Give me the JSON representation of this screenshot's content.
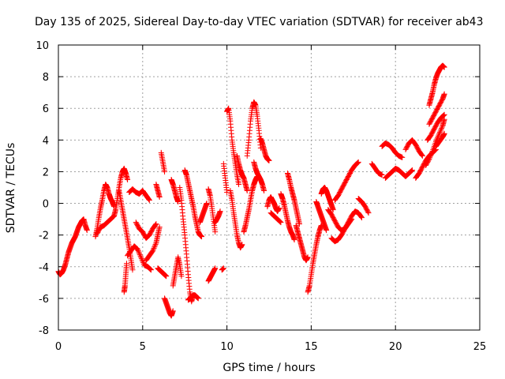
{
  "chart_data": {
    "type": "scatter",
    "title": "Day 135 of 2025, Sidereal Day-to-day VTEC variation (SDTVAR) for receiver ab43",
    "xlabel": "GPS time / hours",
    "ylabel": "SDTVAR / TECUs",
    "xlim": [
      0,
      25
    ],
    "ylim": [
      -8,
      10
    ],
    "xticks": [
      0,
      5,
      10,
      15,
      20,
      25
    ],
    "yticks": [
      -8,
      -6,
      -4,
      -2,
      0,
      2,
      4,
      6,
      8,
      10
    ],
    "xtick_labels": [
      "0",
      "5",
      "10",
      "15",
      "20",
      "25"
    ],
    "ytick_labels": [
      "-8",
      "-6",
      "-4",
      "-2",
      "0",
      "2",
      "4",
      "6",
      "8",
      "10"
    ],
    "grid": true,
    "marker": "+",
    "color": "#ff0000",
    "series": [
      {
        "x": [
          0.0,
          0.1,
          0.2,
          0.3,
          0.4,
          0.5,
          0.6,
          0.7,
          0.8,
          0.9,
          1.0,
          1.1,
          1.2,
          1.3,
          1.4,
          1.5,
          1.6,
          1.7
        ],
        "y": [
          -4.3,
          -4.5,
          -4.4,
          -4.2,
          -3.9,
          -3.5,
          -3.1,
          -2.8,
          -2.5,
          -2.3,
          -2.1,
          -1.8,
          -1.5,
          -1.3,
          -1.1,
          -1.0,
          -1.4,
          -1.7
        ]
      },
      {
        "x": [
          2.2,
          2.3,
          2.4,
          2.5,
          2.6,
          2.7,
          2.8,
          2.9,
          3.0,
          3.1,
          3.2,
          3.3
        ],
        "y": [
          -2.1,
          -1.6,
          -0.9,
          -0.3,
          0.2,
          0.8,
          1.2,
          1.0,
          0.6,
          0.3,
          0.1,
          -0.2
        ]
      },
      {
        "x": [
          2.3,
          2.5,
          2.7,
          2.9,
          3.1,
          3.3
        ],
        "y": [
          -1.9,
          -1.5,
          -1.4,
          -1.2,
          -1.0,
          -0.8
        ]
      },
      {
        "x": [
          3.3,
          3.4,
          3.5,
          3.6,
          3.7,
          3.8,
          3.9,
          4.0,
          4.1
        ],
        "y": [
          -0.8,
          -0.4,
          0.3,
          1.0,
          1.6,
          2.0,
          2.2,
          1.9,
          1.5
        ]
      },
      {
        "x": [
          3.6,
          3.7,
          3.8,
          3.9,
          4.0,
          4.1,
          4.2,
          4.3,
          4.4
        ],
        "y": [
          0.8,
          0.2,
          -0.4,
          -1.0,
          -1.6,
          -2.2,
          -2.8,
          -3.5,
          -4.2
        ]
      },
      {
        "x": [
          3.9,
          3.95,
          4.0,
          4.05
        ],
        "y": [
          -5.6,
          -5.2,
          -4.5,
          -3.8
        ]
      },
      {
        "x": [
          4.1,
          4.3,
          4.5,
          4.7,
          4.9,
          5.1,
          5.3,
          5.5
        ],
        "y": [
          -3.3,
          -3.0,
          -2.7,
          -2.9,
          -3.4,
          -3.9,
          -4.0,
          -4.2
        ]
      },
      {
        "x": [
          4.2,
          4.4,
          4.6,
          4.8,
          5.0,
          5.2,
          5.4
        ],
        "y": [
          0.7,
          0.9,
          0.7,
          0.6,
          0.8,
          0.5,
          0.2
        ]
      },
      {
        "x": [
          4.6,
          4.8,
          5.0,
          5.2,
          5.4,
          5.6,
          5.8
        ],
        "y": [
          -1.2,
          -1.6,
          -1.8,
          -2.2,
          -2.0,
          -1.6,
          -1.3
        ]
      },
      {
        "x": [
          5.2,
          5.4,
          5.6,
          5.8,
          5.9,
          6.0
        ],
        "y": [
          -3.6,
          -3.3,
          -3.0,
          -2.5,
          -2.0,
          -1.5
        ]
      },
      {
        "x": [
          5.8,
          5.9,
          6.0
        ],
        "y": [
          1.2,
          0.8,
          0.4
        ]
      },
      {
        "x": [
          5.9,
          6.0,
          6.1,
          6.2,
          6.3,
          6.4
        ],
        "y": [
          -4.1,
          -4.2,
          -4.3,
          -4.4,
          -4.5,
          -4.6
        ]
      },
      {
        "x": [
          6.1,
          6.2,
          6.3
        ],
        "y": [
          3.2,
          2.6,
          2.0
        ]
      },
      {
        "x": [
          6.3,
          6.4,
          6.5,
          6.6,
          6.7,
          6.8
        ],
        "y": [
          -6.0,
          -6.3,
          -6.6,
          -6.9,
          -7.1,
          -6.8
        ]
      },
      {
        "x": [
          6.8,
          6.9,
          7.0,
          7.1,
          7.2,
          7.3
        ],
        "y": [
          -5.2,
          -4.6,
          -4.0,
          -3.4,
          -3.9,
          -4.6
        ]
      },
      {
        "x": [
          6.7,
          6.8,
          6.9,
          7.0,
          7.1
        ],
        "y": [
          1.5,
          1.2,
          0.8,
          0.4,
          0.1
        ]
      },
      {
        "x": [
          7.2,
          7.3,
          7.4,
          7.5,
          7.6,
          7.7,
          7.8,
          7.9,
          8.0
        ],
        "y": [
          1.0,
          0.2,
          -1.0,
          -2.0,
          -3.2,
          -4.5,
          -5.6,
          -6.2,
          -5.8
        ]
      },
      {
        "x": [
          7.5,
          7.6,
          7.7,
          7.8,
          7.9,
          8.0,
          8.1,
          8.2,
          8.3,
          8.4,
          8.5
        ],
        "y": [
          2.1,
          1.8,
          1.3,
          0.8,
          0.3,
          -0.2,
          -0.8,
          -1.3,
          -1.8,
          -2.0,
          -2.1
        ]
      },
      {
        "x": [
          7.7,
          7.8,
          7.9,
          8.0,
          8.1,
          8.2,
          8.3
        ],
        "y": [
          -6.1,
          -6.0,
          -5.9,
          -5.8,
          -5.8,
          -5.9,
          -6.0
        ]
      },
      {
        "x": [
          8.4,
          8.5,
          8.6,
          8.7,
          8.8
        ],
        "y": [
          -1.2,
          -0.9,
          -0.6,
          -0.3,
          0.0
        ]
      },
      {
        "x": [
          8.9,
          9.0,
          9.1,
          9.2,
          9.3
        ],
        "y": [
          0.9,
          0.5,
          -0.2,
          -1.0,
          -1.8
        ]
      },
      {
        "x": [
          8.9,
          9.0,
          9.1,
          9.2,
          9.3
        ],
        "y": [
          -4.9,
          -4.7,
          -4.5,
          -4.3,
          -4.1
        ]
      },
      {
        "x": [
          9.3,
          9.4,
          9.5,
          9.6
        ],
        "y": [
          -1.2,
          -1.0,
          -0.8,
          -0.5
        ]
      },
      {
        "x": [
          9.7,
          9.8
        ],
        "y": [
          -4.2,
          -4.1
        ]
      },
      {
        "x": [
          9.8,
          9.9,
          10.0
        ],
        "y": [
          2.5,
          1.6,
          0.7
        ]
      },
      {
        "x": [
          10.0,
          10.1,
          10.2,
          10.3,
          10.4,
          10.5,
          10.6,
          10.7
        ],
        "y": [
          5.8,
          6.0,
          5.2,
          4.0,
          3.2,
          2.5,
          1.8,
          1.2
        ]
      },
      {
        "x": [
          10.2,
          10.3,
          10.4,
          10.5,
          10.6,
          10.7,
          10.8,
          10.9
        ],
        "y": [
          0.8,
          0.2,
          -0.6,
          -1.3,
          -2.0,
          -2.5,
          -2.8,
          -2.6
        ]
      },
      {
        "x": [
          10.6,
          10.7,
          10.8,
          10.9,
          11.0,
          11.1,
          11.2
        ],
        "y": [
          3.0,
          2.5,
          2.1,
          1.8,
          1.6,
          1.2,
          0.8
        ]
      },
      {
        "x": [
          11.0,
          11.1,
          11.2,
          11.3,
          11.4,
          11.5,
          11.6,
          11.7,
          11.8
        ],
        "y": [
          -1.8,
          -1.4,
          -0.9,
          -0.4,
          0.2,
          0.8,
          1.2,
          1.5,
          1.7
        ]
      },
      {
        "x": [
          11.2,
          11.3,
          11.4,
          11.5,
          11.6,
          11.7,
          11.8,
          11.9,
          12.0
        ],
        "y": [
          3.0,
          4.0,
          5.2,
          6.0,
          6.4,
          6.2,
          5.5,
          4.6,
          3.5
        ]
      },
      {
        "x": [
          11.6,
          11.7,
          11.8,
          11.9,
          12.0,
          12.1,
          12.2
        ],
        "y": [
          2.6,
          2.2,
          1.9,
          1.7,
          1.5,
          1.2,
          0.8
        ]
      },
      {
        "x": [
          12.0,
          12.1,
          12.2,
          12.3,
          12.4,
          12.5
        ],
        "y": [
          4.1,
          3.8,
          3.4,
          3.0,
          2.8,
          2.7
        ]
      },
      {
        "x": [
          12.4,
          12.5,
          12.6,
          12.7,
          12.8,
          12.9,
          13.0,
          13.1
        ],
        "y": [
          -0.2,
          0.2,
          0.4,
          0.2,
          0.0,
          -0.3,
          -0.5,
          -0.3
        ]
      },
      {
        "x": [
          12.6,
          12.8,
          13.0,
          13.2
        ],
        "y": [
          -0.6,
          -0.8,
          -1.0,
          -1.2
        ]
      },
      {
        "x": [
          13.2,
          13.3,
          13.4,
          13.5,
          13.6,
          13.7,
          13.8,
          13.9,
          14.0
        ],
        "y": [
          0.6,
          0.3,
          -0.1,
          -0.6,
          -1.1,
          -1.5,
          -1.8,
          -2.0,
          -2.3
        ]
      },
      {
        "x": [
          13.6,
          13.7,
          13.8,
          13.9,
          14.0,
          14.1,
          14.2,
          14.3
        ],
        "y": [
          1.9,
          1.5,
          1.0,
          0.6,
          0.2,
          -0.3,
          -0.8,
          -1.3
        ]
      },
      {
        "x": [
          14.1,
          14.2,
          14.3,
          14.4,
          14.5,
          14.6,
          14.7,
          14.8
        ],
        "y": [
          -1.4,
          -1.8,
          -2.2,
          -2.6,
          -3.0,
          -3.4,
          -3.6,
          -3.4
        ]
      },
      {
        "x": [
          14.8,
          14.9,
          15.0,
          15.1,
          15.2,
          15.3,
          15.4,
          15.5,
          15.6
        ],
        "y": [
          -5.6,
          -5.2,
          -4.5,
          -3.8,
          -3.2,
          -2.6,
          -2.1,
          -1.7,
          -1.4
        ]
      },
      {
        "x": [
          15.3,
          15.4,
          15.5,
          15.6,
          15.7,
          15.8,
          15.9
        ],
        "y": [
          0.1,
          -0.2,
          -0.5,
          -0.8,
          -1.1,
          -1.4,
          -1.7
        ]
      },
      {
        "x": [
          15.6,
          15.7,
          15.8,
          15.9,
          16.0,
          16.1,
          16.2,
          16.3
        ],
        "y": [
          0.6,
          0.9,
          1.0,
          0.8,
          0.5,
          0.2,
          -0.1,
          -0.4
        ]
      },
      {
        "x": [
          16.0,
          16.2,
          16.4,
          16.6,
          16.8,
          17.0,
          17.2,
          17.4
        ],
        "y": [
          -0.4,
          -0.7,
          -1.1,
          -1.5,
          -1.7,
          -1.6,
          -1.3,
          -1.0
        ]
      },
      {
        "x": [
          16.4,
          16.6,
          16.8,
          17.0,
          17.2,
          17.4,
          17.6,
          17.8
        ],
        "y": [
          0.2,
          0.5,
          0.9,
          1.3,
          1.7,
          2.1,
          2.4,
          2.6
        ]
      },
      {
        "x": [
          16.2,
          16.4,
          16.6,
          16.8,
          17.0,
          17.2,
          17.4,
          17.6,
          17.8,
          18.0
        ],
        "y": [
          -2.2,
          -2.4,
          -2.3,
          -2.0,
          -1.6,
          -1.2,
          -0.8,
          -0.5,
          -0.6,
          -0.9
        ]
      },
      {
        "x": [
          17.8,
          18.0,
          18.2,
          18.4
        ],
        "y": [
          0.3,
          0.1,
          -0.2,
          -0.6
        ]
      },
      {
        "x": [
          18.6,
          18.8,
          19.0,
          19.2
        ],
        "y": [
          2.5,
          2.2,
          1.9,
          1.8
        ]
      },
      {
        "x": [
          19.2,
          19.4,
          19.6,
          19.8,
          20.0,
          20.2,
          20.4
        ],
        "y": [
          3.6,
          3.8,
          3.7,
          3.5,
          3.2,
          3.0,
          2.9
        ]
      },
      {
        "x": [
          19.4,
          19.6,
          19.8,
          20.0,
          20.2,
          20.4,
          20.6,
          20.8,
          21.0
        ],
        "y": [
          1.6,
          1.8,
          2.0,
          2.2,
          2.1,
          1.9,
          1.7,
          1.9,
          2.1
        ]
      },
      {
        "x": [
          20.6,
          20.8,
          21.0,
          21.2,
          21.4,
          21.6
        ],
        "y": [
          3.4,
          3.8,
          4.0,
          3.7,
          3.3,
          3.0
        ]
      },
      {
        "x": [
          21.2,
          21.4,
          21.6,
          21.8,
          22.0,
          22.2,
          22.4
        ],
        "y": [
          1.6,
          1.9,
          2.3,
          2.7,
          3.0,
          3.2,
          3.4
        ]
      },
      {
        "x": [
          21.8,
          22.0,
          22.2,
          22.4,
          22.6,
          22.8,
          22.9
        ],
        "y": [
          2.4,
          2.8,
          3.3,
          3.9,
          4.4,
          4.9,
          5.3
        ]
      },
      {
        "x": [
          21.9,
          22.1,
          22.3,
          22.5,
          22.7,
          22.9
        ],
        "y": [
          4.0,
          4.3,
          4.7,
          5.1,
          5.4,
          5.6
        ]
      },
      {
        "x": [
          22.0,
          22.2,
          22.4,
          22.6,
          22.8,
          22.9
        ],
        "y": [
          5.0,
          5.4,
          5.8,
          6.2,
          6.6,
          6.9
        ]
      },
      {
        "x": [
          22.0,
          22.1,
          22.2,
          22.3,
          22.4,
          22.5,
          22.6,
          22.7,
          22.8,
          22.9
        ],
        "y": [
          6.2,
          6.6,
          7.0,
          7.5,
          7.9,
          8.2,
          8.4,
          8.6,
          8.7,
          8.6
        ]
      },
      {
        "x": [
          22.4,
          22.6,
          22.8,
          22.9
        ],
        "y": [
          3.6,
          3.9,
          4.2,
          4.4
        ]
      }
    ]
  }
}
